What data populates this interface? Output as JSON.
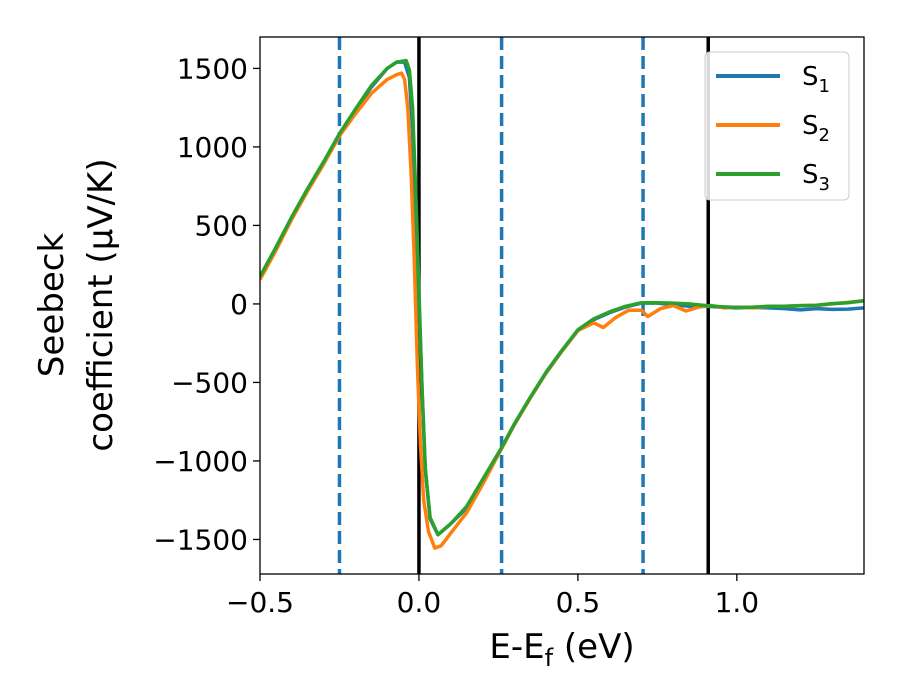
{
  "chart_data": {
    "type": "line",
    "xlabel": {
      "main": "E-E",
      "sub": "f",
      "suffix": " (eV)"
    },
    "ylabel_lines": [
      "Seebeck",
      "coefficient  (μV/K)"
    ],
    "xlim": [
      -0.5,
      1.4
    ],
    "ylim": [
      -1720,
      1700
    ],
    "xticks": [
      -0.5,
      0.0,
      0.5,
      1.0
    ],
    "xtick_labels": [
      "−0.5",
      "0.0",
      "0.5",
      "1.0"
    ],
    "yticks": [
      -1500,
      -1000,
      -500,
      0,
      500,
      1000,
      1500
    ],
    "ytick_labels": [
      "−1500",
      "−1000",
      "−500",
      "0",
      "500",
      "1000",
      "1500"
    ],
    "grid": false,
    "legend_position": "top-right",
    "vlines_dashed": [
      -0.25,
      0.26,
      0.705
    ],
    "vlines_solid": [
      0.0,
      0.91
    ],
    "series": [
      {
        "name": "S",
        "sub": "1",
        "color": "#1f77b4",
        "points": [
          [
            -0.5,
            165
          ],
          [
            -0.45,
            350
          ],
          [
            -0.4,
            550
          ],
          [
            -0.35,
            730
          ],
          [
            -0.3,
            900
          ],
          [
            -0.25,
            1080
          ],
          [
            -0.2,
            1230
          ],
          [
            -0.15,
            1380
          ],
          [
            -0.1,
            1500
          ],
          [
            -0.07,
            1540
          ],
          [
            -0.045,
            1540
          ],
          [
            -0.03,
            1440
          ],
          [
            -0.02,
            1100
          ],
          [
            -0.01,
            500
          ],
          [
            0.0,
            0
          ],
          [
            0.01,
            -550
          ],
          [
            0.02,
            -1050
          ],
          [
            0.035,
            -1370
          ],
          [
            0.06,
            -1470
          ],
          [
            0.1,
            -1400
          ],
          [
            0.15,
            -1300
          ],
          [
            0.2,
            -1130
          ],
          [
            0.26,
            -920
          ],
          [
            0.3,
            -770
          ],
          [
            0.35,
            -600
          ],
          [
            0.4,
            -440
          ],
          [
            0.45,
            -300
          ],
          [
            0.5,
            -170
          ],
          [
            0.55,
            -100
          ],
          [
            0.6,
            -55
          ],
          [
            0.65,
            -20
          ],
          [
            0.7,
            5
          ],
          [
            0.75,
            5
          ],
          [
            0.8,
            -5
          ],
          [
            0.85,
            -15
          ],
          [
            0.9,
            -15
          ],
          [
            0.95,
            -20
          ],
          [
            1.0,
            -25
          ],
          [
            1.05,
            -22
          ],
          [
            1.1,
            -25
          ],
          [
            1.15,
            -30
          ],
          [
            1.2,
            -38
          ],
          [
            1.25,
            -30
          ],
          [
            1.3,
            -35
          ],
          [
            1.35,
            -33
          ],
          [
            1.4,
            -25
          ]
        ]
      },
      {
        "name": "S",
        "sub": "2",
        "color": "#ff7f0e",
        "points": [
          [
            -0.5,
            155
          ],
          [
            -0.45,
            340
          ],
          [
            -0.4,
            540
          ],
          [
            -0.35,
            720
          ],
          [
            -0.3,
            890
          ],
          [
            -0.25,
            1070
          ],
          [
            -0.2,
            1210
          ],
          [
            -0.15,
            1340
          ],
          [
            -0.1,
            1430
          ],
          [
            -0.07,
            1460
          ],
          [
            -0.055,
            1470
          ],
          [
            -0.045,
            1430
          ],
          [
            -0.035,
            1250
          ],
          [
            -0.025,
            850
          ],
          [
            -0.015,
            300
          ],
          [
            -0.005,
            -400
          ],
          [
            0.005,
            -900
          ],
          [
            0.015,
            -1250
          ],
          [
            0.03,
            -1450
          ],
          [
            0.05,
            -1555
          ],
          [
            0.07,
            -1540
          ],
          [
            0.1,
            -1460
          ],
          [
            0.15,
            -1330
          ],
          [
            0.2,
            -1150
          ],
          [
            0.26,
            -920
          ],
          [
            0.3,
            -770
          ],
          [
            0.35,
            -600
          ],
          [
            0.4,
            -440
          ],
          [
            0.45,
            -300
          ],
          [
            0.5,
            -170
          ],
          [
            0.55,
            -120
          ],
          [
            0.58,
            -150
          ],
          [
            0.62,
            -85
          ],
          [
            0.66,
            -40
          ],
          [
            0.7,
            -40
          ],
          [
            0.72,
            -80
          ],
          [
            0.76,
            -30
          ],
          [
            0.8,
            -10
          ],
          [
            0.84,
            -45
          ],
          [
            0.88,
            -20
          ],
          [
            0.92,
            -10
          ],
          [
            0.96,
            -25
          ],
          [
            1.0,
            -20
          ],
          [
            1.05,
            -25
          ],
          [
            1.1,
            -15
          ],
          [
            1.15,
            -15
          ],
          [
            1.2,
            -10
          ],
          [
            1.25,
            -10
          ],
          [
            1.3,
            0
          ],
          [
            1.35,
            10
          ],
          [
            1.4,
            20
          ]
        ]
      },
      {
        "name": "S",
        "sub": "3",
        "color": "#2ca02c",
        "points": [
          [
            -0.5,
            175
          ],
          [
            -0.45,
            360
          ],
          [
            -0.4,
            555
          ],
          [
            -0.35,
            735
          ],
          [
            -0.3,
            905
          ],
          [
            -0.25,
            1085
          ],
          [
            -0.2,
            1240
          ],
          [
            -0.15,
            1390
          ],
          [
            -0.1,
            1500
          ],
          [
            -0.07,
            1540
          ],
          [
            -0.04,
            1550
          ],
          [
            -0.03,
            1490
          ],
          [
            -0.02,
            1250
          ],
          [
            -0.01,
            700
          ],
          [
            0.0,
            100
          ],
          [
            0.01,
            -550
          ],
          [
            0.02,
            -1050
          ],
          [
            0.035,
            -1360
          ],
          [
            0.06,
            -1470
          ],
          [
            0.1,
            -1400
          ],
          [
            0.15,
            -1290
          ],
          [
            0.2,
            -1120
          ],
          [
            0.26,
            -915
          ],
          [
            0.3,
            -765
          ],
          [
            0.35,
            -595
          ],
          [
            0.4,
            -435
          ],
          [
            0.45,
            -295
          ],
          [
            0.5,
            -165
          ],
          [
            0.55,
            -95
          ],
          [
            0.6,
            -50
          ],
          [
            0.65,
            -15
          ],
          [
            0.7,
            8
          ],
          [
            0.75,
            8
          ],
          [
            0.8,
            5
          ],
          [
            0.85,
            0
          ],
          [
            0.9,
            -10
          ],
          [
            0.95,
            -18
          ],
          [
            1.0,
            -22
          ],
          [
            1.05,
            -20
          ],
          [
            1.1,
            -15
          ],
          [
            1.15,
            -15
          ],
          [
            1.2,
            -12
          ],
          [
            1.25,
            -8
          ],
          [
            1.3,
            2
          ],
          [
            1.35,
            8
          ],
          [
            1.4,
            20
          ]
        ]
      }
    ]
  }
}
